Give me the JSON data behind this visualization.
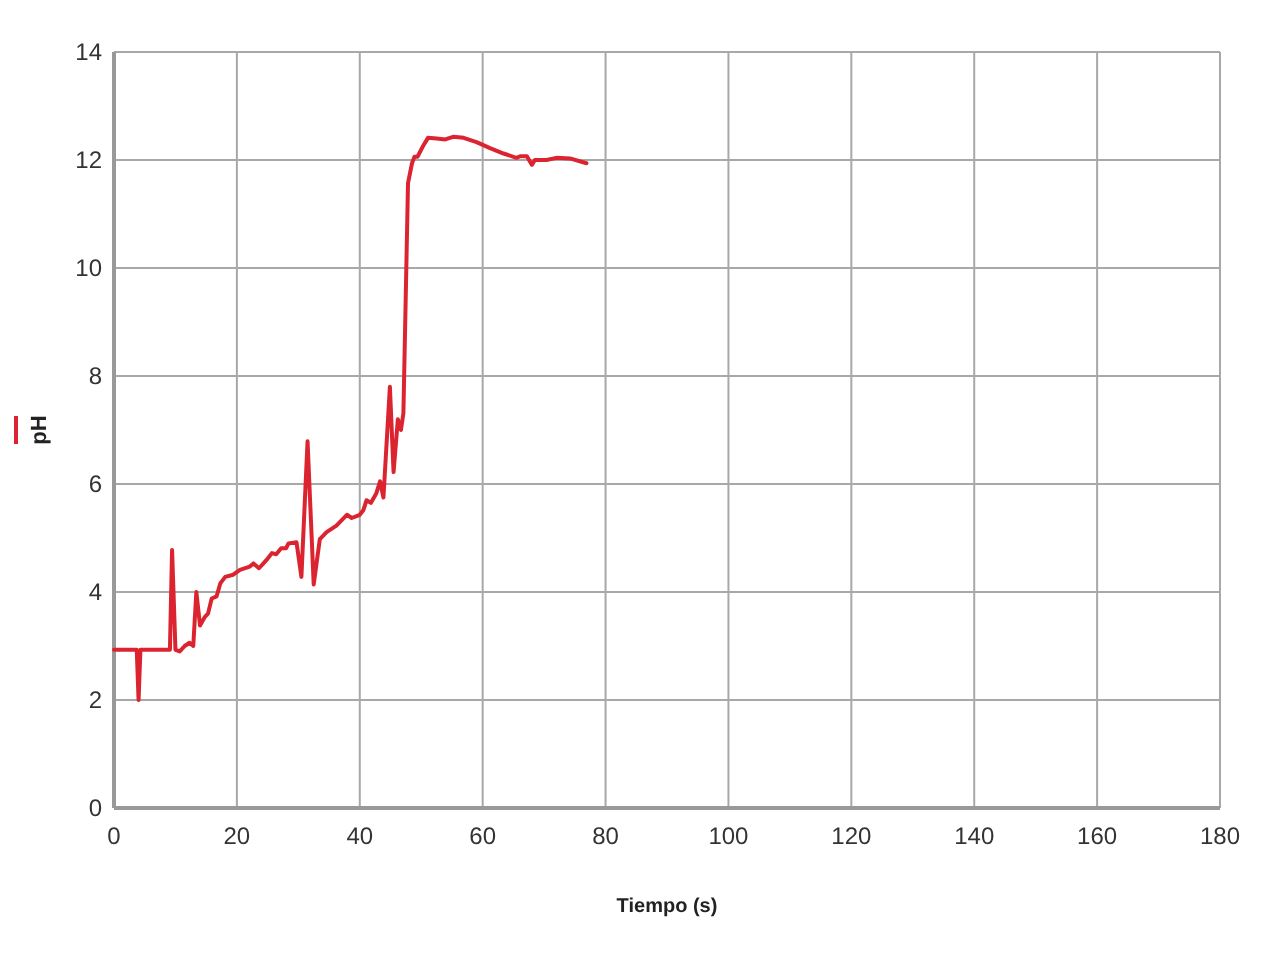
{
  "chart_data": {
    "type": "line",
    "xlabel": "Tiempo (s)",
    "series": [
      {
        "name": "pH",
        "color": "#dc2430",
        "x": [
          0,
          3.7,
          4.0,
          4.3,
          9.1,
          9.45,
          10.0,
          10.7,
          11.5,
          12.3,
          12.9,
          13.4,
          14.0,
          14.8,
          15.3,
          15.9,
          16.7,
          17.3,
          18.1,
          19.4,
          20.5,
          22.1,
          22.7,
          23.6,
          24.8,
          25.7,
          26.4,
          27.2,
          28.0,
          28.4,
          29.7,
          30.5,
          31.5,
          32.5,
          33.5,
          34.6,
          36.2,
          37.9,
          38.7,
          40.0,
          40.6,
          41.1,
          41.8,
          42.7,
          43.3,
          43.85,
          44.9,
          45.5,
          46.2,
          46.7,
          47.1,
          47.85,
          48.5,
          48.9,
          49.4,
          50.35,
          51.1,
          52.5,
          53.9,
          55.2,
          56.9,
          59.0,
          61.2,
          63.4,
          65.5,
          66.1,
          67.2,
          68.0,
          68.5,
          70.4,
          72.0,
          74.2,
          76.9
        ],
        "values": [
          2.93,
          2.93,
          2.0,
          2.93,
          2.93,
          4.78,
          2.93,
          2.9,
          3.0,
          3.06,
          3.0,
          4.0,
          3.38,
          3.54,
          3.6,
          3.88,
          3.92,
          4.16,
          4.28,
          4.32,
          4.41,
          4.47,
          4.53,
          4.44,
          4.59,
          4.72,
          4.7,
          4.81,
          4.81,
          4.9,
          4.92,
          4.28,
          6.79,
          4.14,
          4.98,
          5.11,
          5.23,
          5.43,
          5.37,
          5.43,
          5.52,
          5.7,
          5.65,
          5.83,
          6.05,
          5.75,
          7.8,
          6.22,
          7.2,
          7.0,
          7.31,
          11.57,
          11.94,
          12.06,
          12.06,
          12.27,
          12.41,
          12.4,
          12.38,
          12.43,
          12.41,
          12.33,
          12.22,
          12.12,
          12.04,
          12.07,
          12.07,
          11.91,
          12.0,
          12.0,
          12.04,
          12.03,
          11.94
        ]
      }
    ],
    "xlim": [
      0,
      180
    ],
    "xticks": [
      0,
      20,
      40,
      60,
      80,
      100,
      120,
      140,
      160,
      180
    ],
    "ylim": [
      0,
      14
    ],
    "yticks": [
      0,
      2,
      4,
      6,
      8,
      10,
      12,
      14
    ],
    "grid": true,
    "legend": "left",
    "marker": "none",
    "line_style": "solid"
  }
}
